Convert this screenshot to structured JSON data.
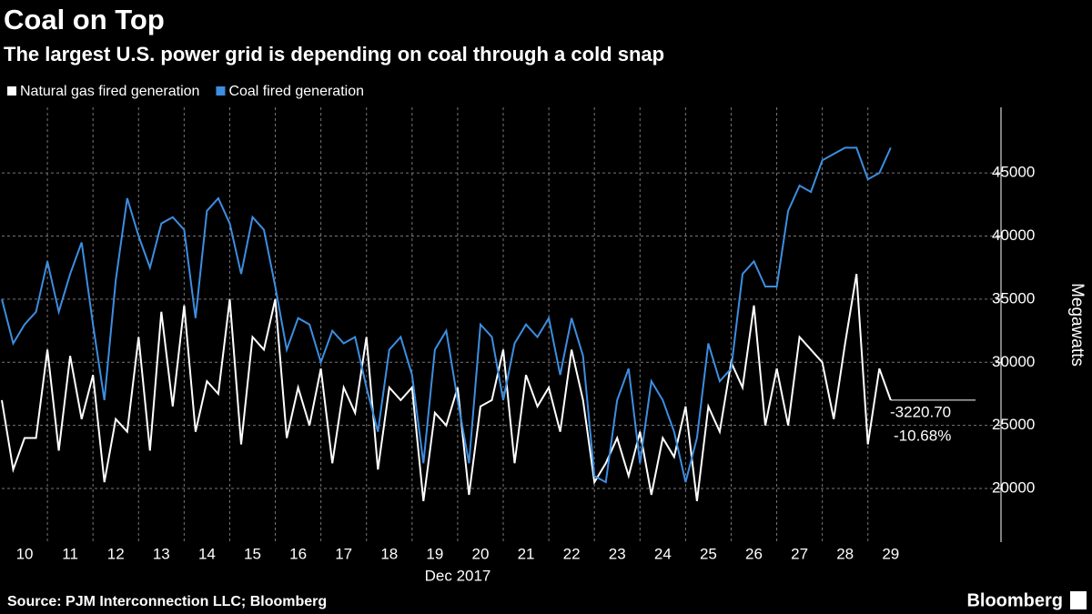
{
  "chart_data": {
    "type": "line",
    "title": "Coal on Top",
    "subtitle": "The largest U.S. power grid is depending on coal through a cold snap",
    "x_label": "Dec 2017",
    "y_label": "Megawatts",
    "source": "Source: PJM Interconnection LLC; Bloomberg",
    "brand": "Bloomberg",
    "annotations": [
      "-3220.70",
      "-10.68%"
    ],
    "x": [
      10,
      10.25,
      10.5,
      10.75,
      11,
      11.25,
      11.5,
      11.75,
      12,
      12.25,
      12.5,
      12.75,
      13,
      13.25,
      13.5,
      13.75,
      14,
      14.25,
      14.5,
      14.75,
      15,
      15.25,
      15.5,
      15.75,
      16,
      16.25,
      16.5,
      16.75,
      17,
      17.25,
      17.5,
      17.75,
      18,
      18.25,
      18.5,
      18.75,
      19,
      19.25,
      19.5,
      19.75,
      20,
      20.25,
      20.5,
      20.75,
      21,
      21.25,
      21.5,
      21.75,
      22,
      22.25,
      22.5,
      22.75,
      23,
      23.25,
      23.5,
      23.75,
      24,
      24.25,
      24.5,
      24.75,
      25,
      25.25,
      25.5,
      25.75,
      26,
      26.25,
      26.5,
      26.75,
      27,
      27.25,
      27.5,
      27.75,
      28,
      28.25,
      28.5,
      28.75,
      29,
      29.25,
      29.5
    ],
    "series": [
      {
        "name": "Natural gas fired generation",
        "color": "#ffffff",
        "values": [
          27000,
          21500,
          24000,
          24000,
          31000,
          23000,
          30500,
          25500,
          29000,
          20500,
          25500,
          24500,
          32000,
          23000,
          34000,
          26500,
          34500,
          24500,
          28500,
          27500,
          35000,
          23500,
          32000,
          31000,
          35000,
          24000,
          28000,
          25000,
          29500,
          22000,
          28000,
          26000,
          32000,
          21500,
          28000,
          27000,
          28000,
          19000,
          26000,
          25000,
          28000,
          19500,
          26500,
          27000,
          31000,
          22000,
          29000,
          26500,
          28000,
          24500,
          31000,
          27000,
          20500,
          22000,
          24000,
          21000,
          24500,
          19500,
          24000,
          22500,
          26500,
          19000,
          26500,
          24500,
          30000,
          28000,
          34500,
          25000,
          29500,
          25000,
          32000,
          31000,
          30000,
          25500,
          31500,
          37000,
          23500,
          29500,
          27000
        ]
      },
      {
        "name": "Coal fired generation",
        "color": "#3d8ee0",
        "values": [
          35000,
          31500,
          33000,
          34000,
          38000,
          34000,
          37000,
          39500,
          33000,
          27000,
          36500,
          43000,
          40000,
          37500,
          41000,
          41500,
          40500,
          33500,
          42000,
          43000,
          41000,
          37000,
          41500,
          40500,
          36000,
          31000,
          33500,
          33000,
          30000,
          32500,
          31500,
          32000,
          28000,
          24500,
          31000,
          32000,
          29000,
          22000,
          31000,
          32500,
          27000,
          22000,
          33000,
          32000,
          27000,
          31500,
          33000,
          32000,
          33500,
          29000,
          33500,
          30500,
          21000,
          20500,
          27000,
          29500,
          22000,
          28500,
          27000,
          24500,
          20500,
          24000,
          31500,
          28500,
          29500,
          37000,
          38000,
          36000,
          36000,
          42000,
          44000,
          43500,
          46000,
          46500,
          47000,
          47000,
          44500,
          45000,
          47000
        ]
      }
    ],
    "xlim": [
      10,
      31.92
    ],
    "xticks": [
      10,
      11,
      12,
      13,
      14,
      15,
      16,
      17,
      18,
      19,
      20,
      21,
      22,
      23,
      24,
      25,
      26,
      27,
      28,
      29
    ],
    "ylim": [
      15750,
      50200
    ],
    "yticks": [
      20000,
      25000,
      30000,
      35000,
      40000,
      45000
    ],
    "grid": true
  }
}
